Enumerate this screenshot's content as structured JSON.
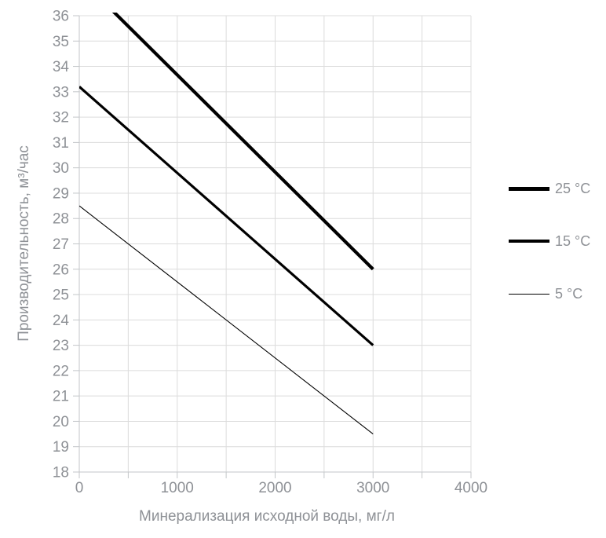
{
  "chart_data": {
    "type": "line",
    "xlabel": "Минерализация исходной воды, мг/л",
    "ylabel": "Производительность, м³/час",
    "xlim": [
      0,
      4000
    ],
    "ylim": [
      18,
      36
    ],
    "x_gridline_step": 500,
    "y_tick_step": 1,
    "x_tick_values": [
      0,
      1000,
      2000,
      3000,
      4000
    ],
    "x_tick_labels": [
      "0",
      "1000",
      "2000",
      "3000",
      "4000"
    ],
    "y_tick_labels": [
      "18",
      "19",
      "20",
      "21",
      "22",
      "23",
      "24",
      "25",
      "26",
      "27",
      "28",
      "29",
      "30",
      "31",
      "32",
      "33",
      "34",
      "35",
      "36"
    ],
    "grid": true,
    "legend_position": "right",
    "series": [
      {
        "name": "25 °C",
        "x": [
          0,
          3000
        ],
        "y": [
          37.5,
          26
        ],
        "stroke_width": 4.2,
        "color": "#000000"
      },
      {
        "name": "15 °C",
        "x": [
          0,
          3000
        ],
        "y": [
          33.2,
          23
        ],
        "stroke_width": 3.2,
        "color": "#000000"
      },
      {
        "name": "5 °C",
        "x": [
          0,
          3000
        ],
        "y": [
          28.5,
          19.5
        ],
        "stroke_width": 1.1,
        "color": "#000000"
      }
    ],
    "colors": {
      "gridline": "#dcdcdc",
      "axis": "#c3c6c9",
      "tick_text": "#8e9196",
      "series_line": "#000000",
      "background": "#ffffff"
    }
  }
}
